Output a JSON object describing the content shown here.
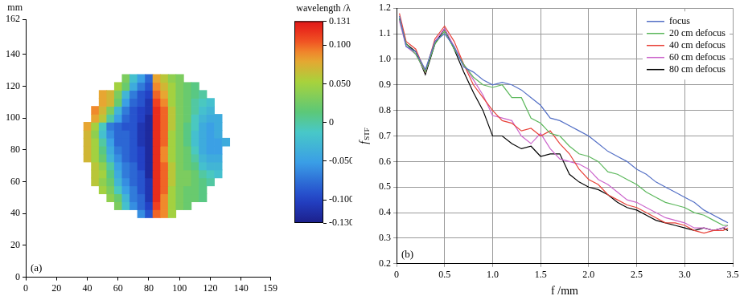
{
  "chart_data": [
    {
      "type": "heatmap",
      "panel": "(a)",
      "y_label": "mm",
      "x": [
        40,
        45,
        50,
        55,
        60,
        65,
        70,
        75,
        80,
        85,
        90,
        95,
        100,
        105,
        110,
        115,
        120,
        125,
        130
      ],
      "y": [
        40,
        45,
        50,
        55,
        60,
        65,
        70,
        75,
        80,
        85,
        90,
        95,
        100,
        105,
        110,
        115,
        120,
        125
      ],
      "cells": [
        [
          null,
          null,
          null,
          null,
          null,
          null,
          null,
          -0.06,
          -0.09,
          0.1,
          0.09,
          0.05,
          null,
          null,
          null,
          null,
          null,
          null,
          null
        ],
        [
          null,
          null,
          null,
          null,
          0.03,
          -0.02,
          -0.06,
          -0.08,
          -0.1,
          0.11,
          0.09,
          0.05,
          0.03,
          0.02,
          null,
          null,
          null,
          null,
          null
        ],
        [
          null,
          null,
          null,
          0.04,
          0.02,
          -0.03,
          -0.07,
          -0.08,
          -0.11,
          0.12,
          0.09,
          0.05,
          0.03,
          0.02,
          0.02,
          0.01,
          null,
          null,
          null
        ],
        [
          null,
          null,
          0.05,
          0.03,
          -0.01,
          -0.05,
          -0.07,
          -0.09,
          -0.11,
          0.12,
          0.1,
          0.05,
          0.03,
          0.02,
          0.02,
          0.01,
          null,
          null,
          null
        ],
        [
          null,
          0.06,
          0.04,
          0.02,
          -0.03,
          -0.06,
          -0.08,
          -0.09,
          -0.11,
          0.12,
          0.1,
          0.06,
          0.03,
          0.03,
          0.02,
          0.01,
          0,
          null,
          null
        ],
        [
          null,
          0.06,
          0.05,
          0.01,
          -0.04,
          -0.07,
          -0.08,
          -0.09,
          -0.12,
          0.12,
          0.1,
          0.06,
          0.03,
          0.03,
          0.02,
          0,
          -0.01,
          -0.02,
          null
        ],
        [
          null,
          0.06,
          0.04,
          0,
          -0.05,
          -0.07,
          -0.08,
          -0.1,
          -0.12,
          0.12,
          0.1,
          0.06,
          0.03,
          0.02,
          0.01,
          -0.02,
          -0.03,
          -0.03,
          null
        ],
        [
          0.07,
          0.05,
          0.02,
          -0.03,
          -0.06,
          -0.08,
          -0.09,
          -0.1,
          -0.12,
          0.12,
          0.09,
          0.05,
          0.03,
          0.02,
          0,
          -0.03,
          -0.04,
          -0.04,
          null
        ],
        [
          0.07,
          0.05,
          0.01,
          -0.04,
          -0.07,
          -0.08,
          -0.09,
          -0.1,
          -0.12,
          0.12,
          0.09,
          0.05,
          0.03,
          0.02,
          -0.01,
          -0.04,
          -0.05,
          -0.05,
          null
        ],
        [
          0.07,
          0.05,
          0,
          -0.05,
          -0.08,
          -0.08,
          -0.09,
          -0.11,
          -0.12,
          0.12,
          0.1,
          0.05,
          0.03,
          0.01,
          -0.02,
          -0.04,
          -0.05,
          -0.05,
          -0.04
        ],
        [
          0.07,
          0.04,
          -0.02,
          -0.06,
          -0.08,
          -0.08,
          -0.09,
          -0.11,
          -0.12,
          0.12,
          0.1,
          0.05,
          0.03,
          0.01,
          -0.02,
          -0.04,
          -0.05,
          -0.04,
          null
        ],
        [
          0.08,
          0.05,
          -0.01,
          -0.07,
          -0.08,
          -0.09,
          -0.09,
          -0.11,
          -0.12,
          0.12,
          0.1,
          0.06,
          0.03,
          0.01,
          -0.01,
          -0.04,
          -0.05,
          -0.04,
          null
        ],
        [
          null,
          0.08,
          0.06,
          0,
          -0.05,
          -0.08,
          -0.09,
          -0.1,
          -0.12,
          0.12,
          0.1,
          0.06,
          0.03,
          0.02,
          -0.01,
          -0.03,
          -0.04,
          -0.04,
          null
        ],
        [
          null,
          0.09,
          0.07,
          0.03,
          -0.03,
          -0.07,
          -0.09,
          -0.1,
          -0.11,
          0.12,
          0.1,
          0.06,
          0.03,
          0.02,
          0,
          -0.02,
          -0.03,
          null,
          null
        ],
        [
          null,
          null,
          0.08,
          0.07,
          0.02,
          -0.05,
          -0.08,
          -0.09,
          -0.11,
          0.11,
          0.09,
          0.05,
          0.03,
          0.02,
          0,
          -0.01,
          -0.02,
          null,
          null
        ],
        [
          null,
          null,
          0.08,
          0.07,
          0.03,
          -0.03,
          -0.07,
          -0.09,
          -0.1,
          0.1,
          0.08,
          0.05,
          0.03,
          0.02,
          0.01,
          0,
          null,
          null,
          null
        ],
        [
          null,
          null,
          null,
          null,
          0.05,
          0.02,
          -0.04,
          -0.07,
          -0.09,
          0.09,
          0.07,
          0.05,
          0.03,
          0.02,
          0.01,
          null,
          null,
          null,
          null
        ],
        [
          null,
          null,
          null,
          null,
          null,
          0.03,
          -0.02,
          -0.05,
          -0.08,
          0.08,
          0.06,
          0.04,
          0.03,
          null,
          null,
          null,
          null,
          null,
          null
        ]
      ],
      "xlim": [
        0,
        159
      ],
      "xticks": [
        0,
        20,
        40,
        60,
        80,
        100,
        120,
        140,
        159
      ],
      "ylim": [
        0,
        162
      ],
      "yticks": [
        0,
        20,
        40,
        60,
        80,
        100,
        120,
        140,
        162
      ],
      "grid": false,
      "colorbar": {
        "title": "wavelength /λ",
        "range": [
          -0.13,
          0.131
        ],
        "ticks": [
          {
            "value": -0.13,
            "label": "-0.130"
          },
          {
            "value": -0.1,
            "label": "-0.100"
          },
          {
            "value": -0.05,
            "label": "-0.050"
          },
          0,
          {
            "value": 0.05,
            "label": "0.050"
          },
          {
            "value": 0.1,
            "label": "0.100"
          },
          0.131
        ]
      }
    },
    {
      "type": "line",
      "panel": "(b)",
      "x_label": "f /mm",
      "y_label": {
        "text": "f",
        "subscript": "STF"
      },
      "x": [
        0.03,
        0.1,
        0.2,
        0.3,
        0.4,
        0.5,
        0.6,
        0.7,
        0.8,
        0.9,
        1.0,
        1.1,
        1.2,
        1.3,
        1.4,
        1.5,
        1.6,
        1.7,
        1.8,
        1.9,
        2.0,
        2.1,
        2.2,
        2.3,
        2.4,
        2.5,
        2.6,
        2.7,
        2.8,
        2.9,
        3.0,
        3.1,
        3.2,
        3.3,
        3.4,
        3.45
      ],
      "series": [
        {
          "name": "focus",
          "color": "#5470c6",
          "values": [
            1.17,
            1.05,
            1.03,
            0.96,
            1.07,
            1.1,
            1.05,
            0.97,
            0.95,
            0.92,
            0.9,
            0.91,
            0.9,
            0.88,
            0.85,
            0.82,
            0.77,
            0.76,
            0.74,
            0.72,
            0.7,
            0.67,
            0.64,
            0.62,
            0.6,
            0.57,
            0.55,
            0.52,
            0.5,
            0.48,
            0.46,
            0.44,
            0.41,
            0.39,
            0.37,
            0.36
          ]
        },
        {
          "name": "20 cm defocus",
          "color": "#5cb85c",
          "values": [
            1.16,
            1.06,
            1.02,
            0.95,
            1.06,
            1.11,
            1.04,
            0.98,
            0.93,
            0.9,
            0.89,
            0.9,
            0.85,
            0.85,
            0.77,
            0.75,
            0.71,
            0.7,
            0.66,
            0.63,
            0.62,
            0.6,
            0.56,
            0.55,
            0.53,
            0.51,
            0.48,
            0.46,
            0.44,
            0.43,
            0.42,
            0.4,
            0.39,
            0.37,
            0.35,
            0.35
          ]
        },
        {
          "name": "40 cm defocus",
          "color": "#e8433a",
          "values": [
            1.18,
            1.07,
            1.04,
            0.95,
            1.08,
            1.13,
            1.07,
            0.98,
            0.9,
            0.85,
            0.8,
            0.76,
            0.75,
            0.72,
            0.73,
            0.7,
            0.72,
            0.67,
            0.63,
            0.57,
            0.53,
            0.51,
            0.47,
            0.45,
            0.43,
            0.42,
            0.4,
            0.38,
            0.36,
            0.36,
            0.35,
            0.33,
            0.32,
            0.33,
            0.33,
            0.34
          ]
        },
        {
          "name": "60 cm defocus",
          "color": "#cc66cc",
          "values": [
            1.15,
            1.05,
            1.02,
            0.95,
            1.07,
            1.12,
            1.05,
            0.98,
            0.92,
            0.86,
            0.78,
            0.77,
            0.76,
            0.7,
            0.67,
            0.71,
            0.65,
            0.61,
            0.6,
            0.59,
            0.57,
            0.53,
            0.51,
            0.48,
            0.45,
            0.44,
            0.42,
            0.4,
            0.38,
            0.37,
            0.36,
            0.34,
            0.34,
            0.33,
            0.34,
            0.35
          ]
        },
        {
          "name": "80 cm defocus",
          "color": "#000000",
          "values": [
            1.16,
            1.06,
            1.03,
            0.94,
            1.06,
            1.12,
            1.04,
            0.95,
            0.87,
            0.8,
            0.7,
            0.7,
            0.67,
            0.65,
            0.66,
            0.62,
            0.63,
            0.63,
            0.55,
            0.52,
            0.5,
            0.49,
            0.47,
            0.44,
            0.42,
            0.41,
            0.39,
            0.37,
            0.36,
            0.35,
            0.34,
            0.33,
            0.34,
            0.33,
            0.34,
            0.33
          ]
        }
      ],
      "xlim": [
        0,
        3.5
      ],
      "xticks": [
        0,
        0.5,
        {
          "value": 1,
          "label": "1.0"
        },
        1.5,
        {
          "value": 2,
          "label": "2.0"
        },
        2.5,
        {
          "value": 3,
          "label": "3.0"
        },
        3.5
      ],
      "ylim": [
        0.2,
        1.2
      ],
      "yticks": [
        0.2,
        0.3,
        0.4,
        0.5,
        0.6,
        0.7,
        0.8,
        0.9,
        {
          "value": 1,
          "label": "1.0"
        },
        1.1,
        1.2
      ],
      "grid": true,
      "legend": "upper right"
    }
  ]
}
